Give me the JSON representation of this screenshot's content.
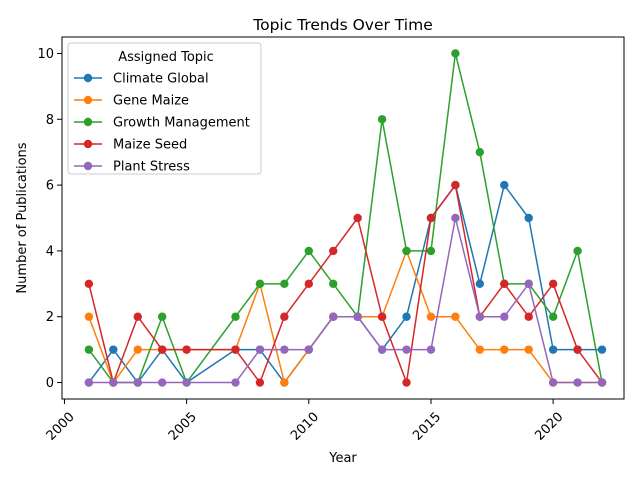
{
  "chart_data": {
    "type": "line",
    "title": "Topic Trends Over Time",
    "xlabel": "Year",
    "ylabel": "Number of Publications",
    "xlim": [
      1999.9,
      2022.9
    ],
    "ylim": [
      -0.5,
      10.5
    ],
    "x_ticks": [
      2000,
      2005,
      2010,
      2015,
      2020
    ],
    "y_ticks": [
      0,
      2,
      4,
      6,
      8,
      10
    ],
    "x_tick_rotation": 45,
    "grid": false,
    "legend": {
      "title": "Assigned Topic",
      "position": "top-left"
    },
    "x": [
      2001,
      2002,
      2003,
      2004,
      2005,
      2007,
      2008,
      2009,
      2010,
      2011,
      2012,
      2013,
      2014,
      2015,
      2016,
      2017,
      2018,
      2019,
      2020,
      2021,
      2022
    ],
    "series": [
      {
        "name": "Climate Global",
        "color": "#1f77b4",
        "values": [
          0,
          1,
          0,
          1,
          0,
          1,
          1,
          0,
          1,
          2,
          2,
          1,
          2,
          5,
          6,
          3,
          6,
          5,
          1,
          1,
          1
        ]
      },
      {
        "name": "Gene Maize",
        "color": "#ff7f0e",
        "values": [
          2,
          0,
          1,
          1,
          1,
          1,
          3,
          0,
          1,
          2,
          2,
          2,
          4,
          2,
          2,
          1,
          1,
          1,
          0,
          0,
          0
        ]
      },
      {
        "name": "Growth Management",
        "color": "#2ca02c",
        "values": [
          1,
          0,
          0,
          2,
          0,
          2,
          3,
          3,
          4,
          3,
          2,
          8,
          4,
          4,
          10,
          7,
          3,
          3,
          2,
          4,
          0
        ]
      },
      {
        "name": "Maize Seed",
        "color": "#d62728",
        "values": [
          3,
          0,
          2,
          1,
          1,
          1,
          0,
          2,
          3,
          4,
          5,
          2,
          0,
          5,
          6,
          2,
          3,
          2,
          3,
          1,
          0
        ]
      },
      {
        "name": "Plant Stress",
        "color": "#9467bd",
        "values": [
          0,
          0,
          0,
          0,
          0,
          0,
          1,
          1,
          1,
          2,
          2,
          1,
          1,
          1,
          5,
          2,
          2,
          3,
          0,
          0,
          0
        ]
      }
    ]
  }
}
